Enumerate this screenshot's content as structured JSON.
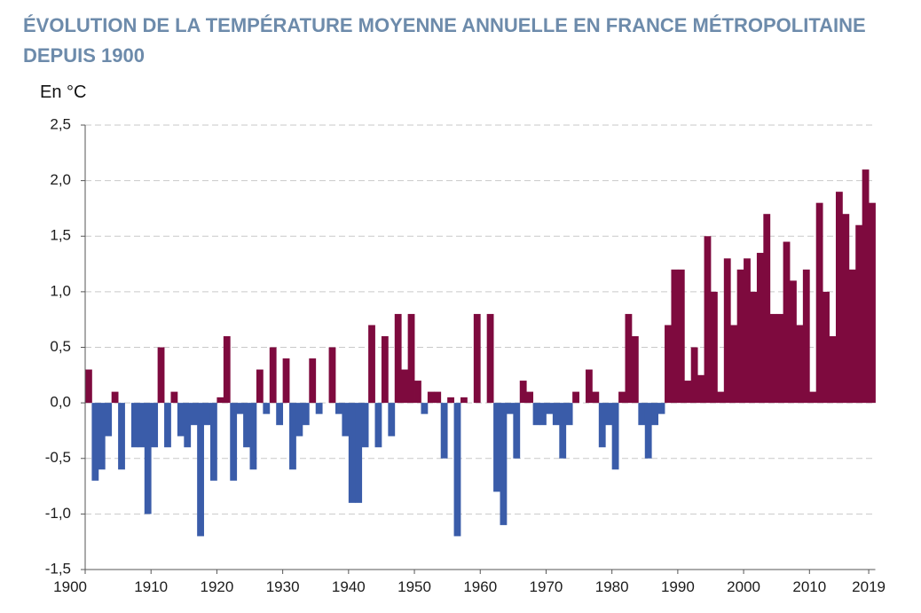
{
  "chart_data": {
    "type": "bar",
    "title": "ÉVOLUTION DE LA TEMPÉRATURE MOYENNE ANNUELLE EN FRANCE MÉTROPOLITAINE DEPUIS 1900",
    "ylabel": "En °C",
    "ylim": [
      -1.5,
      2.5
    ],
    "grid": true,
    "yticks": [
      {
        "value": 2.5,
        "label": "2,5"
      },
      {
        "value": 2.0,
        "label": "2,0"
      },
      {
        "value": 1.5,
        "label": "1,5"
      },
      {
        "value": 1.0,
        "label": "1,0"
      },
      {
        "value": 0.5,
        "label": "0,5"
      },
      {
        "value": 0.0,
        "label": "0,0"
      },
      {
        "value": -0.5,
        "label": "-0,5"
      },
      {
        "value": -1.0,
        "label": "-1,0"
      },
      {
        "value": -1.5,
        "label": "-1,5"
      }
    ],
    "xticks": [
      {
        "value": 1900,
        "label": "1900"
      },
      {
        "value": 1910,
        "label": "1910"
      },
      {
        "value": 1920,
        "label": "1920"
      },
      {
        "value": 1930,
        "label": "1930"
      },
      {
        "value": 1940,
        "label": "1940"
      },
      {
        "value": 1950,
        "label": "1950"
      },
      {
        "value": 1960,
        "label": "1960"
      },
      {
        "value": 1970,
        "label": "1970"
      },
      {
        "value": 1980,
        "label": "1980"
      },
      {
        "value": 1990,
        "label": "1990"
      },
      {
        "value": 2000,
        "label": "2000"
      },
      {
        "value": 2010,
        "label": "2010"
      },
      {
        "value": 2019,
        "label": "2019"
      }
    ],
    "x": [
      1900,
      1901,
      1902,
      1903,
      1904,
      1905,
      1906,
      1907,
      1908,
      1909,
      1910,
      1911,
      1912,
      1913,
      1914,
      1915,
      1916,
      1917,
      1918,
      1919,
      1920,
      1921,
      1922,
      1923,
      1924,
      1925,
      1926,
      1927,
      1928,
      1929,
      1930,
      1931,
      1932,
      1933,
      1934,
      1935,
      1936,
      1937,
      1938,
      1939,
      1940,
      1941,
      1942,
      1943,
      1944,
      1945,
      1946,
      1947,
      1948,
      1949,
      1950,
      1951,
      1952,
      1953,
      1954,
      1955,
      1956,
      1957,
      1958,
      1959,
      1960,
      1961,
      1962,
      1963,
      1964,
      1965,
      1966,
      1967,
      1968,
      1969,
      1970,
      1971,
      1972,
      1973,
      1974,
      1975,
      1976,
      1977,
      1978,
      1979,
      1980,
      1981,
      1982,
      1983,
      1984,
      1985,
      1986,
      1987,
      1988,
      1989,
      1990,
      1991,
      1992,
      1993,
      1994,
      1995,
      1996,
      1997,
      1998,
      1999,
      2000,
      2001,
      2002,
      2003,
      2004,
      2005,
      2006,
      2007,
      2008,
      2009,
      2010,
      2011,
      2012,
      2013,
      2014,
      2015,
      2016,
      2017,
      2018,
      2019
    ],
    "values": [
      0.3,
      -0.7,
      -0.6,
      -0.3,
      0.1,
      -0.6,
      0.0,
      -0.4,
      -0.4,
      -1.0,
      -0.4,
      0.5,
      -0.4,
      0.1,
      -0.3,
      -0.4,
      -0.2,
      -1.2,
      -0.2,
      -0.7,
      0.05,
      0.6,
      -0.7,
      -0.1,
      -0.4,
      -0.6,
      0.3,
      -0.1,
      0.5,
      -0.2,
      0.4,
      -0.6,
      -0.3,
      -0.2,
      0.4,
      -0.1,
      0.0,
      0.5,
      -0.1,
      -0.3,
      -0.9,
      -0.9,
      -0.4,
      0.7,
      -0.4,
      0.6,
      -0.3,
      0.8,
      0.3,
      0.8,
      0.2,
      -0.1,
      0.1,
      0.1,
      -0.5,
      0.05,
      -1.2,
      0.05,
      0.0,
      0.8,
      0.0,
      0.8,
      -0.8,
      -1.1,
      -0.1,
      -0.5,
      0.2,
      0.1,
      -0.2,
      -0.2,
      -0.1,
      -0.2,
      -0.5,
      -0.2,
      0.1,
      0.0,
      0.3,
      0.1,
      -0.4,
      -0.2,
      -0.6,
      0.1,
      0.8,
      0.6,
      -0.2,
      -0.5,
      -0.2,
      -0.1,
      0.7,
      1.2,
      1.2,
      0.2,
      0.5,
      0.25,
      1.5,
      1.0,
      0.1,
      1.3,
      0.7,
      1.2,
      1.3,
      1.0,
      1.35,
      1.7,
      0.8,
      0.8,
      1.45,
      1.1,
      0.7,
      1.2,
      0.1,
      1.8,
      1.0,
      0.6,
      1.9,
      1.7,
      1.2,
      1.6,
      2.1,
      1.8
    ],
    "colors": {
      "title": "#6d8bab",
      "positive": "#7e0a3e",
      "negative": "#3a5ca9"
    }
  }
}
